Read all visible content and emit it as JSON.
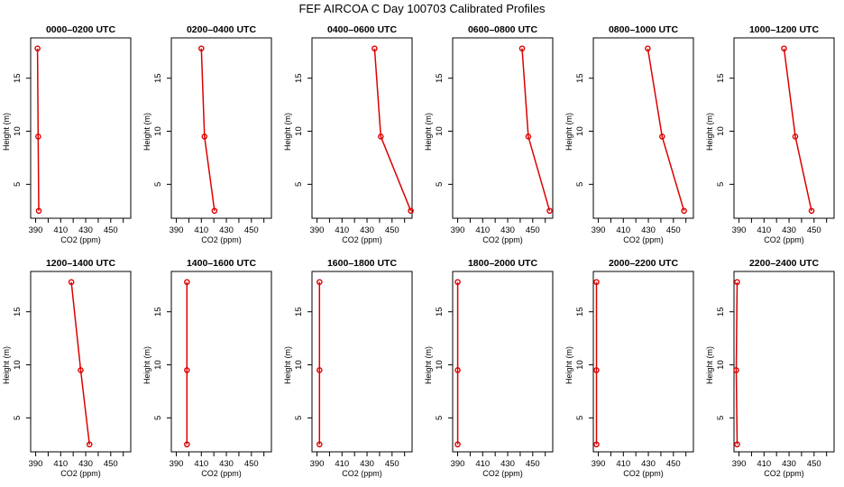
{
  "figure_title": "FEF AIRCOA C  Day 100703  Calibrated Profiles",
  "colors": {
    "profile": "#dd0000",
    "frame": "#000000",
    "background": "#ffffff"
  },
  "chart_data": [
    {
      "type": "line",
      "title": "0000–0200 UTC",
      "xlabel": "CO2 (ppm)",
      "ylabel": "Height (m)",
      "xlim": [
        386,
        466
      ],
      "ylim": [
        1.8,
        18.8
      ],
      "xticks": [
        390,
        400,
        410,
        420,
        430,
        440,
        450,
        460
      ],
      "xtick_labels": [
        "390",
        "",
        "410",
        "",
        "430",
        "",
        "450",
        ""
      ],
      "yticks": [
        5,
        10,
        15
      ],
      "ytick_labels": [
        "5",
        "10",
        "15"
      ],
      "x": [
        391.5,
        392.0,
        392.5
      ],
      "y": [
        17.8,
        9.5,
        2.5
      ]
    },
    {
      "type": "line",
      "title": "0200–0400 UTC",
      "xlabel": "CO2 (ppm)",
      "ylabel": "Height (m)",
      "xlim": [
        386,
        466
      ],
      "ylim": [
        1.8,
        18.8
      ],
      "xticks": [
        390,
        400,
        410,
        420,
        430,
        440,
        450,
        460
      ],
      "xtick_labels": [
        "390",
        "",
        "410",
        "",
        "430",
        "",
        "450",
        ""
      ],
      "yticks": [
        5,
        10,
        15
      ],
      "ytick_labels": [
        "5",
        "10",
        "15"
      ],
      "x": [
        410.0,
        412.5,
        420.5
      ],
      "y": [
        17.8,
        9.5,
        2.5
      ]
    },
    {
      "type": "line",
      "title": "0400–0600 UTC",
      "xlabel": "CO2 (ppm)",
      "ylabel": "Height (m)",
      "xlim": [
        386,
        466
      ],
      "ylim": [
        1.8,
        18.8
      ],
      "xticks": [
        390,
        400,
        410,
        420,
        430,
        440,
        450,
        460
      ],
      "xtick_labels": [
        "390",
        "",
        "410",
        "",
        "430",
        "",
        "450",
        ""
      ],
      "yticks": [
        5,
        10,
        15
      ],
      "ytick_labels": [
        "5",
        "10",
        "15"
      ],
      "x": [
        436.0,
        441.0,
        465.0
      ],
      "y": [
        17.8,
        9.5,
        2.5
      ]
    },
    {
      "type": "line",
      "title": "0600–0800 UTC",
      "xlabel": "CO2 (ppm)",
      "ylabel": "Height (m)",
      "xlim": [
        386,
        466
      ],
      "ylim": [
        1.8,
        18.8
      ],
      "xticks": [
        390,
        400,
        410,
        420,
        430,
        440,
        450,
        460
      ],
      "xtick_labels": [
        "390",
        "",
        "410",
        "",
        "430",
        "",
        "450",
        ""
      ],
      "yticks": [
        5,
        10,
        15
      ],
      "ytick_labels": [
        "5",
        "10",
        "15"
      ],
      "x": [
        441.5,
        446.5,
        463.5
      ],
      "y": [
        17.8,
        9.5,
        2.5
      ]
    },
    {
      "type": "line",
      "title": "0800–1000 UTC",
      "xlabel": "CO2 (ppm)",
      "ylabel": "Height (m)",
      "xlim": [
        386,
        466
      ],
      "ylim": [
        1.8,
        18.8
      ],
      "xticks": [
        390,
        400,
        410,
        420,
        430,
        440,
        450,
        460
      ],
      "xtick_labels": [
        "390",
        "",
        "410",
        "",
        "430",
        "",
        "450",
        ""
      ],
      "yticks": [
        5,
        10,
        15
      ],
      "ytick_labels": [
        "5",
        "10",
        "15"
      ],
      "x": [
        429.5,
        441.0,
        458.5
      ],
      "y": [
        17.8,
        9.5,
        2.5
      ]
    },
    {
      "type": "line",
      "title": "1000–1200 UTC",
      "xlabel": "CO2 (ppm)",
      "ylabel": "Height (m)",
      "xlim": [
        386,
        466
      ],
      "ylim": [
        1.8,
        18.8
      ],
      "xticks": [
        390,
        400,
        410,
        420,
        430,
        440,
        450,
        460
      ],
      "xtick_labels": [
        "390",
        "",
        "410",
        "",
        "430",
        "",
        "450",
        ""
      ],
      "yticks": [
        5,
        10,
        15
      ],
      "ytick_labels": [
        "5",
        "10",
        "15"
      ],
      "x": [
        426.0,
        435.0,
        448.0
      ],
      "y": [
        17.8,
        9.5,
        2.5
      ]
    },
    {
      "type": "line",
      "title": "1200–1400 UTC",
      "xlabel": "CO2 (ppm)",
      "ylabel": "Height (m)",
      "xlim": [
        386,
        466
      ],
      "ylim": [
        1.8,
        18.8
      ],
      "xticks": [
        390,
        400,
        410,
        420,
        430,
        440,
        450,
        460
      ],
      "xtick_labels": [
        "390",
        "",
        "410",
        "",
        "430",
        "",
        "450",
        ""
      ],
      "yticks": [
        5,
        10,
        15
      ],
      "ytick_labels": [
        "5",
        "10",
        "15"
      ],
      "x": [
        418.5,
        426.0,
        433.0
      ],
      "y": [
        17.8,
        9.5,
        2.5
      ]
    },
    {
      "type": "line",
      "title": "1400–1600 UTC",
      "xlabel": "CO2 (ppm)",
      "ylabel": "Height (m)",
      "xlim": [
        386,
        466
      ],
      "ylim": [
        1.8,
        18.8
      ],
      "xticks": [
        390,
        400,
        410,
        420,
        430,
        440,
        450,
        460
      ],
      "xtick_labels": [
        "390",
        "",
        "410",
        "",
        "430",
        "",
        "450",
        ""
      ],
      "yticks": [
        5,
        10,
        15
      ],
      "ytick_labels": [
        "5",
        "10",
        "15"
      ],
      "x": [
        398.5,
        398.5,
        398.5
      ],
      "y": [
        17.8,
        9.5,
        2.5
      ]
    },
    {
      "type": "line",
      "title": "1600–1800 UTC",
      "xlabel": "CO2 (ppm)",
      "ylabel": "Height (m)",
      "xlim": [
        386,
        466
      ],
      "ylim": [
        1.8,
        18.8
      ],
      "xticks": [
        390,
        400,
        410,
        420,
        430,
        440,
        450,
        460
      ],
      "xtick_labels": [
        "390",
        "",
        "410",
        "",
        "430",
        "",
        "450",
        ""
      ],
      "yticks": [
        5,
        10,
        15
      ],
      "ytick_labels": [
        "5",
        "10",
        "15"
      ],
      "x": [
        392.0,
        392.0,
        392.0
      ],
      "y": [
        17.8,
        9.5,
        2.5
      ]
    },
    {
      "type": "line",
      "title": "1800–2000 UTC",
      "xlabel": "CO2 (ppm)",
      "ylabel": "Height (m)",
      "xlim": [
        386,
        466
      ],
      "ylim": [
        1.8,
        18.8
      ],
      "xticks": [
        390,
        400,
        410,
        420,
        430,
        440,
        450,
        460
      ],
      "xtick_labels": [
        "390",
        "",
        "410",
        "",
        "430",
        "",
        "450",
        ""
      ],
      "yticks": [
        5,
        10,
        15
      ],
      "ytick_labels": [
        "5",
        "10",
        "15"
      ],
      "x": [
        390.0,
        390.0,
        390.0
      ],
      "y": [
        17.8,
        9.5,
        2.5
      ]
    },
    {
      "type": "line",
      "title": "2000–2200 UTC",
      "xlabel": "CO2 (ppm)",
      "ylabel": "Height (m)",
      "xlim": [
        386,
        466
      ],
      "ylim": [
        1.8,
        18.8
      ],
      "xticks": [
        390,
        400,
        410,
        420,
        430,
        440,
        450,
        460
      ],
      "xtick_labels": [
        "390",
        "",
        "410",
        "",
        "430",
        "",
        "450",
        ""
      ],
      "yticks": [
        5,
        10,
        15
      ],
      "ytick_labels": [
        "5",
        "10",
        "15"
      ],
      "x": [
        388.5,
        388.5,
        388.5
      ],
      "y": [
        17.8,
        9.5,
        2.5
      ]
    },
    {
      "type": "line",
      "title": "2200–2400 UTC",
      "xlabel": "CO2 (ppm)",
      "ylabel": "Height (m)",
      "xlim": [
        386,
        466
      ],
      "ylim": [
        1.8,
        18.8
      ],
      "xticks": [
        390,
        400,
        410,
        420,
        430,
        440,
        450,
        460
      ],
      "xtick_labels": [
        "390",
        "",
        "410",
        "",
        "430",
        "",
        "450",
        ""
      ],
      "yticks": [
        5,
        10,
        15
      ],
      "ytick_labels": [
        "5",
        "10",
        "15"
      ],
      "x": [
        388.5,
        387.8,
        388.5
      ],
      "y": [
        17.8,
        9.5,
        2.5
      ]
    }
  ]
}
